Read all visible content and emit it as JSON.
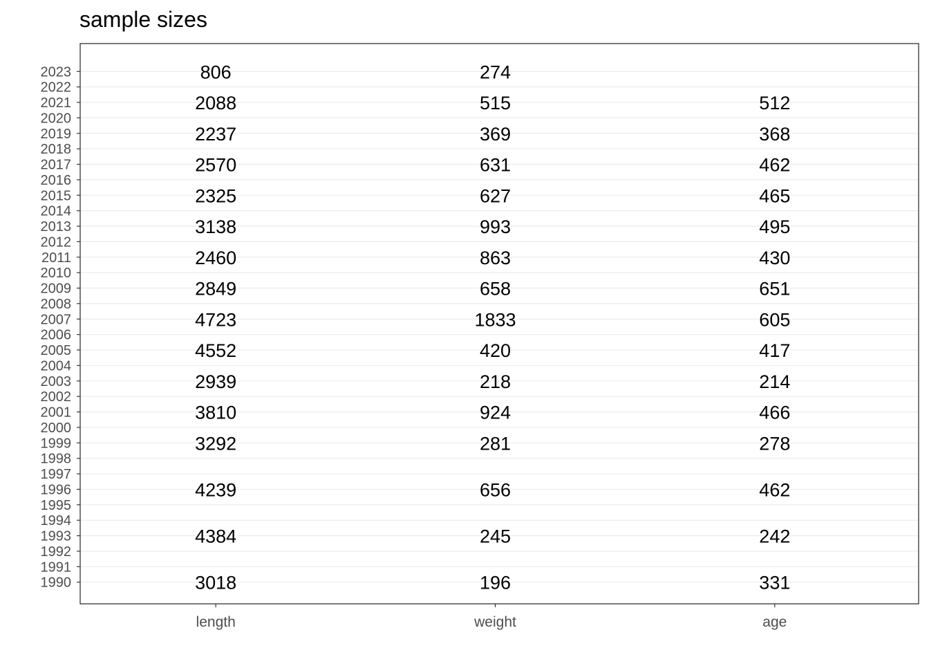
{
  "chart_data": {
    "type": "table",
    "title": "sample sizes",
    "xlabel": "",
    "ylabel": "",
    "columns": [
      "length",
      "weight",
      "age"
    ],
    "year_ticks": [
      1990,
      1991,
      1992,
      1993,
      1994,
      1995,
      1996,
      1997,
      1998,
      1999,
      2000,
      2001,
      2002,
      2003,
      2004,
      2005,
      2006,
      2007,
      2008,
      2009,
      2010,
      2011,
      2012,
      2013,
      2014,
      2015,
      2016,
      2017,
      2018,
      2019,
      2020,
      2021,
      2022,
      2023
    ],
    "ylim": [
      1988.6,
      2024.8
    ],
    "grid": true,
    "rows": [
      {
        "year": 2023,
        "length": "806",
        "weight": "274",
        "age": ""
      },
      {
        "year": 2021,
        "length": "2088",
        "weight": "515",
        "age": "512"
      },
      {
        "year": 2019,
        "length": "2237",
        "weight": "369",
        "age": "368"
      },
      {
        "year": 2017,
        "length": "2570",
        "weight": "631",
        "age": "462"
      },
      {
        "year": 2015,
        "length": "2325",
        "weight": "627",
        "age": "465"
      },
      {
        "year": 2013,
        "length": "3138",
        "weight": "993",
        "age": "495"
      },
      {
        "year": 2011,
        "length": "2460",
        "weight": "863",
        "age": "430"
      },
      {
        "year": 2009,
        "length": "2849",
        "weight": "658",
        "age": "651"
      },
      {
        "year": 2007,
        "length": "4723",
        "weight": "1833",
        "age": "605"
      },
      {
        "year": 2005,
        "length": "4552",
        "weight": "420",
        "age": "417"
      },
      {
        "year": 2003,
        "length": "2939",
        "weight": "218",
        "age": "214"
      },
      {
        "year": 2001,
        "length": "3810",
        "weight": "924",
        "age": "466"
      },
      {
        "year": 1999,
        "length": "3292",
        "weight": "281",
        "age": "278"
      },
      {
        "year": 1996,
        "length": "4239",
        "weight": "656",
        "age": "462"
      },
      {
        "year": 1993,
        "length": "4384",
        "weight": "245",
        "age": "242"
      },
      {
        "year": 1990,
        "length": "3018",
        "weight": "196",
        "age": "331"
      }
    ]
  },
  "colors": {
    "text": "#000000",
    "tick_text": "#4d4d4d",
    "grid": "#ebebeb",
    "panel_border": "#333333",
    "background": "#ffffff"
  }
}
